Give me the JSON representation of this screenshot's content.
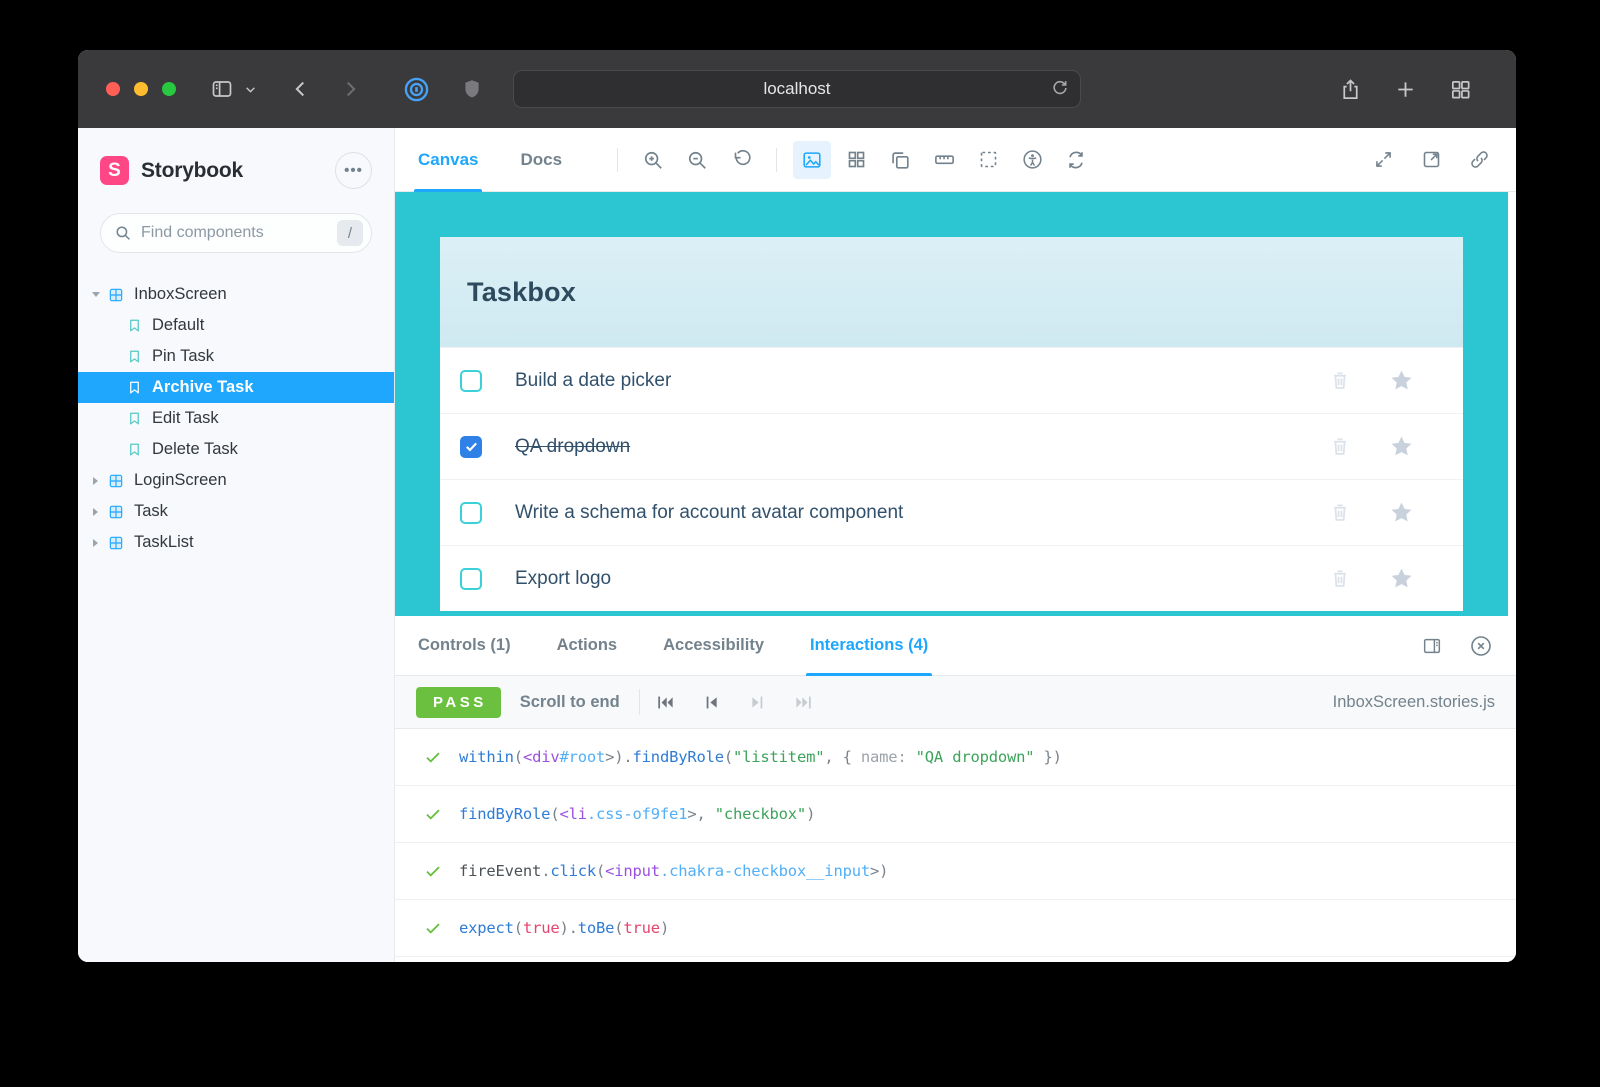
{
  "browser": {
    "url": "localhost"
  },
  "sidebar": {
    "brand": "Storybook",
    "search": {
      "placeholder": "Find components",
      "shortcut": "/"
    },
    "tree": [
      {
        "label": "InboxScreen",
        "type": "component",
        "state": "expanded"
      },
      {
        "label": "Default",
        "type": "story"
      },
      {
        "label": "Pin Task",
        "type": "story"
      },
      {
        "label": "Archive Task",
        "type": "story",
        "selected": true
      },
      {
        "label": "Edit Task",
        "type": "story"
      },
      {
        "label": "Delete Task",
        "type": "story"
      },
      {
        "label": "LoginScreen",
        "type": "component",
        "state": "collapsed"
      },
      {
        "label": "Task",
        "type": "component",
        "state": "collapsed"
      },
      {
        "label": "TaskList",
        "type": "component",
        "state": "collapsed"
      }
    ]
  },
  "toolbar": {
    "canvas_tab": "Canvas",
    "docs_tab": "Docs"
  },
  "preview": {
    "title": "Taskbox",
    "tasks": [
      {
        "title": "Build a date picker",
        "checked": false
      },
      {
        "title": "QA dropdown",
        "checked": true
      },
      {
        "title": "Write a schema for account avatar component",
        "checked": false
      },
      {
        "title": "Export logo",
        "checked": false
      }
    ]
  },
  "panel": {
    "tabs": [
      {
        "label": "Controls (1)",
        "active": false
      },
      {
        "label": "Actions",
        "active": false
      },
      {
        "label": "Accessibility",
        "active": false
      },
      {
        "label": "Interactions (4)",
        "active": true
      }
    ],
    "status": "PASS",
    "scroll_label": "Scroll to end",
    "file": "InboxScreen.stories.js",
    "steps": [
      {
        "tokens": [
          {
            "t": "within",
            "c": "fn"
          },
          {
            "t": "(",
            "c": "pun"
          },
          {
            "t": "<div",
            "c": "tag"
          },
          {
            "t": "#root",
            "c": "sel"
          },
          {
            "t": ">",
            "c": "pun"
          },
          {
            "t": ").",
            "c": "pun"
          },
          {
            "t": "findByRole",
            "c": "fn"
          },
          {
            "t": "(",
            "c": "pun"
          },
          {
            "t": "\"listitem\"",
            "c": "str"
          },
          {
            "t": ", { ",
            "c": "pun"
          },
          {
            "t": "name: ",
            "c": "key"
          },
          {
            "t": "\"QA dropdown\"",
            "c": "str"
          },
          {
            "t": " })",
            "c": "pun"
          }
        ]
      },
      {
        "tokens": [
          {
            "t": "findByRole",
            "c": "fn"
          },
          {
            "t": "(",
            "c": "pun"
          },
          {
            "t": "<li",
            "c": "tag"
          },
          {
            "t": ".css-of9fe1",
            "c": "sel"
          },
          {
            "t": ">",
            "c": "pun"
          },
          {
            "t": ", ",
            "c": "pun"
          },
          {
            "t": "\"checkbox\"",
            "c": "str"
          },
          {
            "t": ")",
            "c": "pun"
          }
        ]
      },
      {
        "tokens": [
          {
            "t": "fireEvent",
            "c": "obj"
          },
          {
            "t": ".",
            "c": "pun"
          },
          {
            "t": "click",
            "c": "fn"
          },
          {
            "t": "(",
            "c": "pun"
          },
          {
            "t": "<input",
            "c": "tag"
          },
          {
            "t": ".chakra-checkbox__input",
            "c": "sel"
          },
          {
            "t": ">)",
            "c": "pun"
          }
        ]
      },
      {
        "tokens": [
          {
            "t": "expect",
            "c": "fn"
          },
          {
            "t": "(",
            "c": "pun"
          },
          {
            "t": "true",
            "c": "bool"
          },
          {
            "t": ").",
            "c": "pun"
          },
          {
            "t": "toBe",
            "c": "fn"
          },
          {
            "t": "(",
            "c": "pun"
          },
          {
            "t": "true",
            "c": "bool"
          },
          {
            "t": ")",
            "c": "pun"
          }
        ]
      }
    ]
  },
  "colors": {
    "accent": "#1EA7FD",
    "stage_teal": "#2CC5D2",
    "pass_green": "#6BC13F",
    "brand_pink": "#FF4785",
    "checked_blue": "#2F80E7",
    "story_teal": "#53C9C4"
  }
}
